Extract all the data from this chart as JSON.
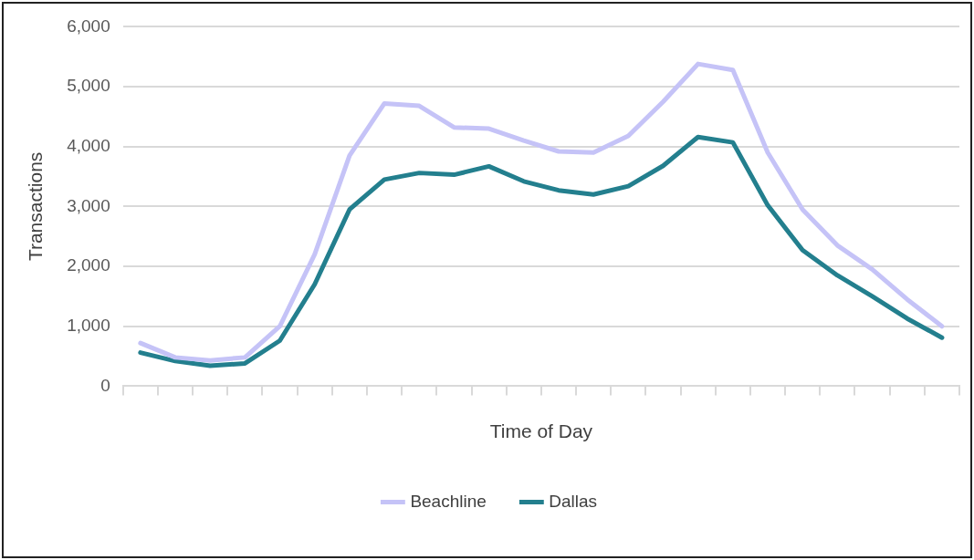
{
  "chart_data": {
    "type": "line",
    "xlabel": "Time of Day",
    "ylabel": "Transactions",
    "categories": [
      null,
      null,
      null,
      null,
      null,
      null,
      null,
      null,
      null,
      null,
      null,
      null,
      null,
      null,
      null,
      null,
      null,
      null,
      null,
      null,
      null,
      null,
      null,
      null
    ],
    "ylim": [
      0,
      6000
    ],
    "yticks": [
      {
        "value": 0,
        "label": "0"
      },
      {
        "value": 1000,
        "label": "1,000"
      },
      {
        "value": 2000,
        "label": "2,000"
      },
      {
        "value": 3000,
        "label": "3,000"
      },
      {
        "value": 4000,
        "label": "4,000"
      },
      {
        "value": 5000,
        "label": "5,000"
      },
      {
        "value": 6000,
        "label": "6,000"
      }
    ],
    "grid": "y",
    "legend": "bottom",
    "marker": "none",
    "line_style": "solid",
    "series": [
      {
        "name": "Beachline",
        "color": "#c5c3f7",
        "values": [
          720,
          480,
          430,
          480,
          1000,
          2200,
          3850,
          4720,
          4680,
          4320,
          4300,
          4100,
          3920,
          3900,
          4180,
          4750,
          5380,
          5280,
          3900,
          2950,
          2350,
          1950,
          1450,
          1000
        ]
      },
      {
        "name": "Dallas",
        "color": "#237f8e",
        "values": [
          560,
          420,
          340,
          380,
          760,
          1700,
          2950,
          3450,
          3560,
          3530,
          3670,
          3420,
          3270,
          3200,
          3340,
          3680,
          4160,
          4070,
          3020,
          2270,
          1850,
          1500,
          1130,
          810
        ]
      }
    ]
  }
}
